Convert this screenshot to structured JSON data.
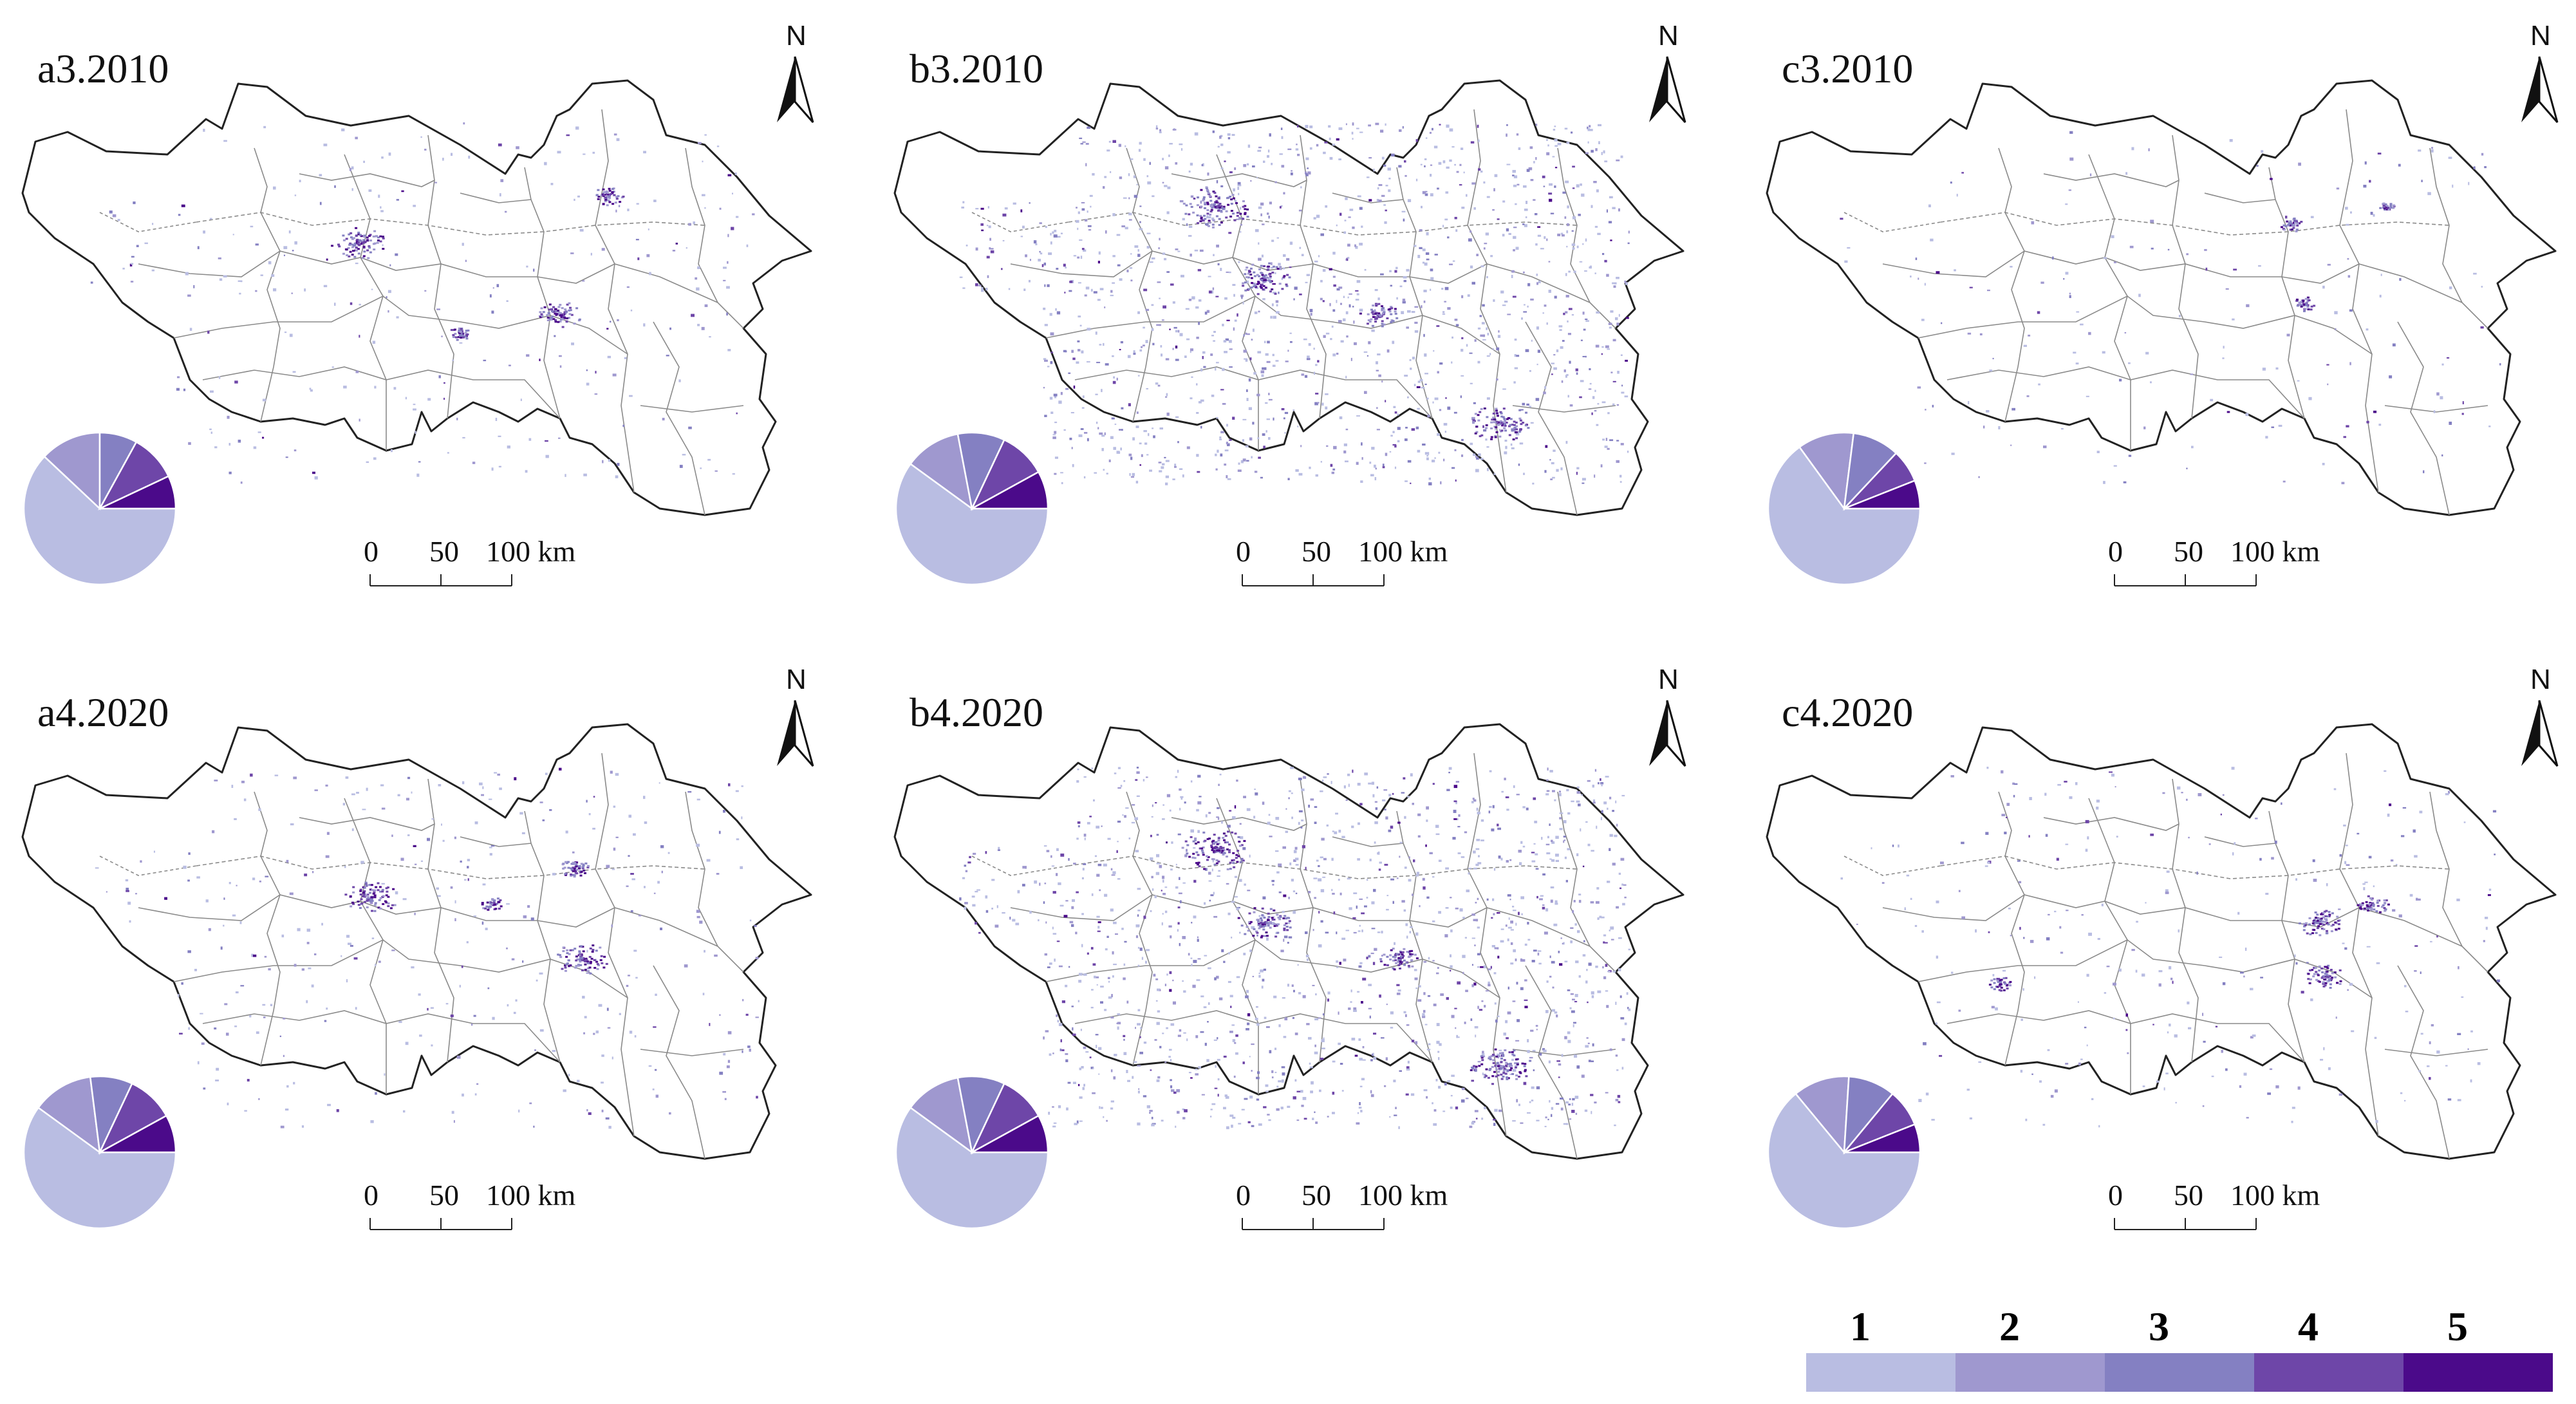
{
  "panels": [
    {
      "id": "a3",
      "label": "a3.2010",
      "pie": [
        62,
        13,
        8,
        10,
        7
      ],
      "density": 0.18,
      "north": "N",
      "scalebar": {
        "labels": [
          "0",
          "50",
          "100 km"
        ]
      },
      "hotspots": [
        [
          0.4,
          0.35,
          7
        ],
        [
          0.7,
          0.55,
          6
        ],
        [
          0.77,
          0.22,
          4
        ],
        [
          0.55,
          0.6,
          3
        ]
      ]
    },
    {
      "id": "b3",
      "label": "b3.2010",
      "pie": [
        60,
        12,
        10,
        10,
        8
      ],
      "density": 1.0,
      "north": "N",
      "scalebar": {
        "labels": [
          "0",
          "50",
          "100 km"
        ]
      },
      "hotspots": [
        [
          0.38,
          0.25,
          9
        ],
        [
          0.45,
          0.45,
          7
        ],
        [
          0.8,
          0.85,
          8
        ],
        [
          0.62,
          0.55,
          5
        ]
      ]
    },
    {
      "id": "c3",
      "label": "c3.2010",
      "pie": [
        65,
        12,
        10,
        7,
        6
      ],
      "density": 0.1,
      "north": "N",
      "scalebar": {
        "labels": [
          "0",
          "50",
          "100 km"
        ]
      },
      "hotspots": [
        [
          0.68,
          0.3,
          3
        ],
        [
          0.7,
          0.52,
          3
        ],
        [
          0.82,
          0.25,
          2
        ]
      ]
    },
    {
      "id": "a4",
      "label": "a4.2020",
      "pie": [
        60,
        13,
        9,
        10,
        8
      ],
      "density": 0.22,
      "north": "N",
      "scalebar": {
        "labels": [
          "0",
          "50",
          "100 km"
        ]
      },
      "hotspots": [
        [
          0.42,
          0.38,
          7
        ],
        [
          0.73,
          0.55,
          7
        ],
        [
          0.72,
          0.3,
          4
        ],
        [
          0.6,
          0.4,
          3
        ]
      ]
    },
    {
      "id": "b4",
      "label": "b4.2020",
      "pie": [
        60,
        12,
        10,
        10,
        8
      ],
      "density": 1.0,
      "north": "N",
      "scalebar": {
        "labels": [
          "0",
          "50",
          "100 km"
        ]
      },
      "hotspots": [
        [
          0.38,
          0.25,
          9
        ],
        [
          0.45,
          0.45,
          7
        ],
        [
          0.8,
          0.85,
          8
        ],
        [
          0.65,
          0.55,
          5
        ]
      ]
    },
    {
      "id": "c4",
      "label": "c4.2020",
      "pie": [
        64,
        12,
        10,
        8,
        6
      ],
      "density": 0.18,
      "north": "N",
      "scalebar": {
        "labels": [
          "0",
          "50",
          "100 km"
        ]
      },
      "hotspots": [
        [
          0.72,
          0.45,
          6
        ],
        [
          0.73,
          0.6,
          5
        ],
        [
          0.8,
          0.4,
          4
        ],
        [
          0.25,
          0.62,
          3
        ]
      ]
    }
  ],
  "legend": {
    "labels": [
      "1",
      "2",
      "3",
      "4",
      "5"
    ],
    "colors": [
      "#b9bde2",
      "#9f98cf",
      "#8480c2",
      "#6e46a8",
      "#4b0a8a"
    ]
  },
  "colors": {
    "boundary_outer": "#222222",
    "boundary_inner": "#8a8a8a",
    "pie_separator": "#ffffff"
  }
}
